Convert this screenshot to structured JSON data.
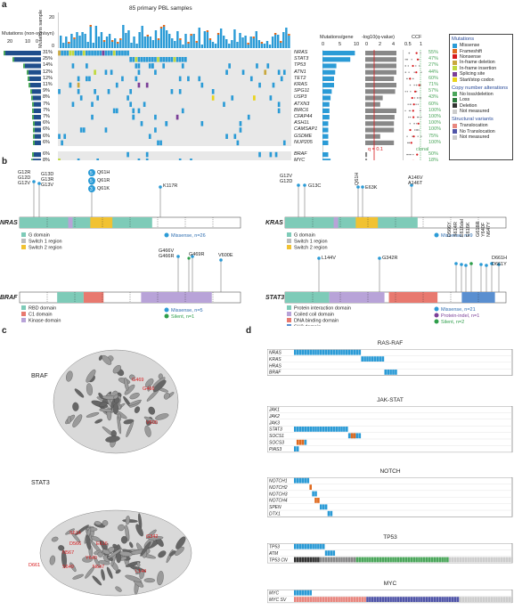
{
  "panels": {
    "a": "a",
    "b": "b",
    "c": "c",
    "d": "d"
  },
  "panel_a": {
    "title": "85 primary PBL samples",
    "left_axis_label": "Mutations (non-syn/syn)",
    "left_ticks": [
      "20",
      "10",
      "0"
    ],
    "top_axis_label": "Mutations sample",
    "top_ticks": [
      "20",
      "0"
    ],
    "genes": [
      "NRAS",
      "STAT3",
      "TP53",
      "ATN1",
      "TET2",
      "KRAS",
      "SPG11",
      "USP3",
      "ATXN3",
      "BIRC6",
      "CFAP44",
      "ASH1L",
      "CAMSAP1",
      "GSDME",
      "NUP205",
      "BRAF",
      "MYC"
    ],
    "percents": [
      "31%",
      "25%",
      "14%",
      "12%",
      "12%",
      "11%",
      "9%",
      "8%",
      "7%",
      "7%",
      "7%",
      "6%",
      "6%",
      "6%",
      "6%",
      "6%",
      "8%"
    ],
    "ccf_values": [
      "55%",
      "47%",
      "27%",
      "44%",
      "60%",
      "71%",
      "57%",
      "43%",
      "60%",
      "100%",
      "100%",
      "100%",
      "100%",
      "75%",
      "100%",
      "50%",
      "18%"
    ],
    "mutations_per_gene_label": "Mutations/gene",
    "mutations_per_gene_ticks": [
      "0",
      "5",
      "10"
    ],
    "qvalue_label": "-log10(q-value)",
    "qvalue_ticks": [
      "0",
      "2",
      "4"
    ],
    "q_threshold": "q = 0.1",
    "ccf_label": "CCF",
    "ccf_ticks": [
      "0.5",
      "1"
    ],
    "clonal_label": "clonal"
  },
  "legend": {
    "mutations_title": "Mutations",
    "mutations": [
      {
        "label": "Missense",
        "color": "#2b9bd6"
      },
      {
        "label": "Frameshift",
        "color": "#e06a1f"
      },
      {
        "label": "Nonsense",
        "color": "#d7191c"
      },
      {
        "label": "In-frame deletion",
        "color": "#c9a83e"
      },
      {
        "label": "In-frame insertion",
        "color": "#bfd93e"
      },
      {
        "label": "Splicing site",
        "color": "#7b3f98"
      },
      {
        "label": "Start/stop codon",
        "color": "#e9d31c"
      }
    ],
    "cna_title": "Copy number alterations",
    "cna": [
      {
        "label": "No loss/deletion",
        "color": "#4aa65a"
      },
      {
        "label": "Loss",
        "color": "#2b7a3b"
      },
      {
        "label": "Deletion",
        "color": "#333333"
      },
      {
        "label": "Not measured",
        "color": "#cccccc"
      }
    ],
    "sv_title": "Structural variants",
    "sv": [
      {
        "label": "Translocation",
        "color": "#e8877f"
      },
      {
        "label": "No Translocation",
        "color": "#5055a8"
      },
      {
        "label": "Not measured",
        "color": "#cccccc"
      }
    ]
  },
  "panel_b": {
    "nras": {
      "name": "NRAS",
      "muts": [
        "G12R",
        "G12D",
        "G12V",
        "G13D",
        "G13R",
        "G13V",
        "Q61H",
        "Q61R",
        "Q61K",
        "K117R"
      ],
      "counts": [
        "5",
        "5",
        "3"
      ],
      "summary": "Missense, n=26"
    },
    "kras": {
      "name": "KRAS",
      "muts": [
        "G12V",
        "G12D",
        "G13C",
        "Q61H",
        "E63K",
        "A146V",
        "A146T"
      ],
      "summary": "Missense, n=9"
    },
    "ras_legend": [
      "G domain",
      "Switch 1 region",
      "Switch 2 region"
    ],
    "braf": {
      "name": "BRAF",
      "muts": [
        "G466V",
        "G466R",
        "G469R",
        "V600E"
      ],
      "summary_missense": "Missense, n=5",
      "summary_silent": "Silent, n=1"
    },
    "braf_legend": [
      "RBD domain",
      "C1 domain",
      "Kinase domain"
    ],
    "stat3": {
      "name": "STAT3",
      "muts": [
        "L144V",
        "G342R",
        "D566Y",
        "Y640F",
        "S614R",
        "E616del",
        "E616K",
        "G618R",
        "Y640F",
        "N647Y",
        "D661H",
        "D661Y"
      ],
      "summary_missense": "Missense, n=21",
      "summary_protein": "Protein-indel, n=1",
      "summary_silent": "Silent, n=2"
    },
    "stat3_legend": [
      "Protein interaction domain",
      "Coiled coil domain",
      "DNA binding domain",
      "SH2 domain"
    ]
  },
  "panel_c": {
    "braf_label": "BRAF",
    "stat3_label": "STAT3",
    "braf_sites": [
      "G469",
      "G466",
      "V600"
    ],
    "stat3_sites": [
      "S614",
      "D566",
      "N567",
      "S649",
      "Y640",
      "D661",
      "E616",
      "N647",
      "L144",
      "G342"
    ]
  },
  "panel_d": {
    "pathways": [
      {
        "title": "RAS-RAF",
        "genes": [
          "NRAS",
          "KRAS",
          "HRAS",
          "BRAF"
        ]
      },
      {
        "title": "JAK-STAT",
        "genes": [
          "JAK1",
          "JAK2",
          "JAK3",
          "STAT3",
          "SOCS1",
          "SOCS3",
          "PIAS3"
        ]
      },
      {
        "title": "NOTCH",
        "genes": [
          "NOTCH1",
          "NOTCH2",
          "NOTCH3",
          "NOTCH4",
          "SPEN",
          "DTX1"
        ]
      },
      {
        "title": "TP53",
        "genes": [
          "TP53",
          "ATM",
          "TP53 CN"
        ]
      },
      {
        "title": "MYC",
        "genes": [
          "MYC",
          "MYC SV"
        ]
      }
    ]
  }
}
